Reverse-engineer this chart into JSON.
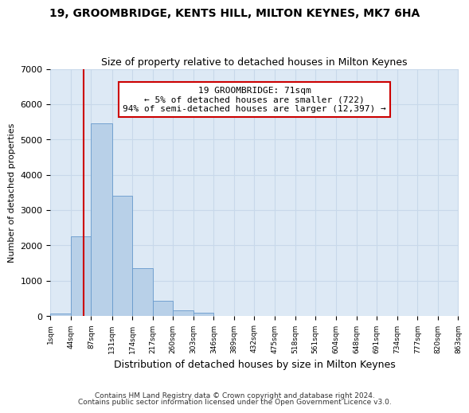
{
  "title1": "19, GROOMBRIDGE, KENTS HILL, MILTON KEYNES, MK7 6HA",
  "title2": "Size of property relative to detached houses in Milton Keynes",
  "xlabel": "Distribution of detached houses by size in Milton Keynes",
  "ylabel": "Number of detached properties",
  "bar_color": "#b8d0e8",
  "bar_edgecolor": "#6699cc",
  "grid_color": "#c8d8ea",
  "bg_color": "#dde9f5",
  "annotation_text": "19 GROOMBRIDGE: 71sqm\n← 5% of detached houses are smaller (722)\n94% of semi-detached houses are larger (12,397) →",
  "vline_x": 71,
  "vline_color": "#cc0000",
  "footnote1": "Contains HM Land Registry data © Crown copyright and database right 2024.",
  "footnote2": "Contains public sector information licensed under the Open Government Licence v3.0.",
  "bin_edges": [
    1,
    44,
    87,
    131,
    174,
    217,
    260,
    303,
    346,
    389,
    432,
    475,
    518,
    561,
    604,
    648,
    691,
    734,
    777,
    820,
    863
  ],
  "bar_heights": [
    80,
    2250,
    5450,
    3400,
    1350,
    430,
    155,
    90,
    0,
    0,
    0,
    0,
    0,
    0,
    0,
    0,
    0,
    0,
    0,
    0
  ],
  "ylim": [
    0,
    7000
  ],
  "yticks": [
    0,
    1000,
    2000,
    3000,
    4000,
    5000,
    6000,
    7000
  ]
}
